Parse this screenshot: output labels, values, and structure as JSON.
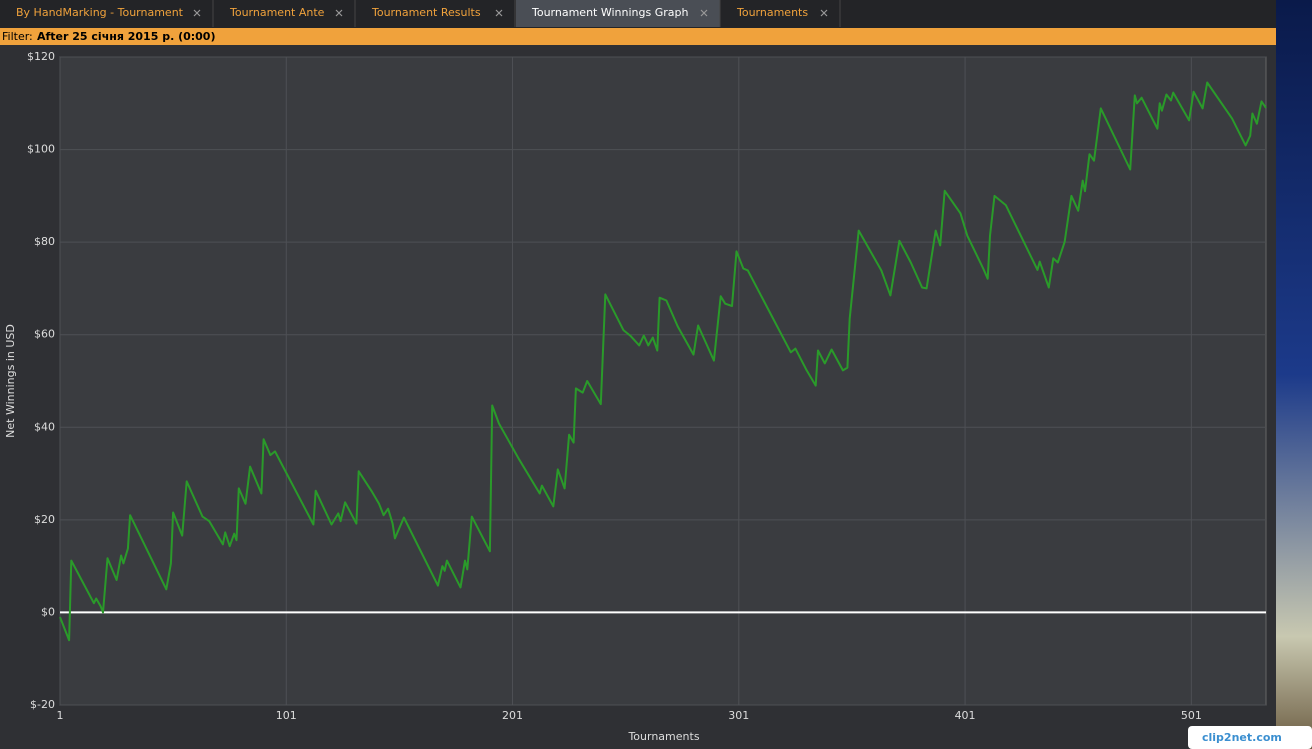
{
  "tabs": [
    {
      "label": "By HandMarking - Tournament",
      "active": false
    },
    {
      "label": "Tournament Ante",
      "active": false
    },
    {
      "label": "Tournament Results",
      "active": false
    },
    {
      "label": "Tournament Winnings Graph",
      "active": true
    },
    {
      "label": "Tournaments",
      "active": false
    }
  ],
  "filter": {
    "label": "Filter:",
    "value": "After 25 січня 2015 р. (0:00)"
  },
  "watermark": "clip2net.com",
  "chart_data": {
    "type": "line",
    "xlabel": "Tournaments",
    "ylabel": "Net Winnings in USD",
    "color": "#2a9a2a",
    "grid": true,
    "xlim": [
      1,
      534
    ],
    "xticks": [
      1,
      101,
      201,
      301,
      401,
      501
    ],
    "ylim": [
      -20,
      120
    ],
    "yticks": [
      {
        "value": -20,
        "label": "$-20"
      },
      {
        "value": 0,
        "label": "$0"
      },
      {
        "value": 20,
        "label": "$20"
      },
      {
        "value": 40,
        "label": "$40"
      },
      {
        "value": 60,
        "label": "$60"
      },
      {
        "value": 80,
        "label": "$80"
      },
      {
        "value": 100,
        "label": "$100"
      },
      {
        "value": 120,
        "label": "$120"
      }
    ],
    "x": [
      1,
      5,
      6,
      16,
      17,
      19,
      20,
      22,
      26,
      28,
      29,
      31,
      32,
      48,
      50,
      51,
      55,
      57,
      64,
      67,
      73,
      74,
      76,
      78,
      79,
      80,
      83,
      85,
      90,
      91,
      94,
      96,
      113,
      114,
      121,
      124,
      125,
      127,
      132,
      133,
      139,
      142,
      144,
      146,
      148,
      149,
      153,
      168,
      170,
      171,
      172,
      178,
      180,
      181,
      183,
      191,
      192,
      195,
      204,
      213,
      214,
      219,
      221,
      224,
      226,
      228,
      229,
      232,
      234,
      240,
      242,
      250,
      253,
      257,
      259,
      261,
      263,
      265,
      266,
      269,
      274,
      281,
      283,
      290,
      293,
      295,
      298,
      300,
      303,
      305,
      324,
      326,
      331,
      335,
      336,
      339,
      342,
      347,
      349,
      350,
      354,
      364,
      368,
      372,
      377,
      382,
      384,
      388,
      390,
      392,
      399,
      402,
      409,
      411,
      412,
      414,
      419,
      433,
      434,
      438,
      440,
      442,
      445,
      448,
      451,
      453,
      454,
      456,
      458,
      461,
      474,
      476,
      477,
      479,
      486,
      487,
      488,
      490,
      492,
      493,
      500,
      502,
      506,
      508,
      519,
      525,
      527,
      528,
      530,
      532,
      534
    ],
    "values": [
      -1,
      -6,
      11.2,
      2,
      3,
      1.3,
      0,
      11.7,
      7,
      12.3,
      10.6,
      13.8,
      21,
      5,
      10.6,
      21.6,
      16.6,
      28.3,
      20.7,
      19.7,
      14.7,
      17.3,
      14.3,
      17,
      15.6,
      26.8,
      23.5,
      31.5,
      25.7,
      37.4,
      34,
      34.8,
      19,
      26.3,
      19,
      21.4,
      19.7,
      23.8,
      19.2,
      30.5,
      26,
      23.5,
      21,
      22.4,
      19.2,
      16,
      20.5,
      5.8,
      10,
      9,
      11.2,
      5.4,
      11.2,
      9.3,
      20.7,
      13.2,
      44.7,
      40.8,
      33,
      25.7,
      27.4,
      22.9,
      30.9,
      26.8,
      38.4,
      36.7,
      48.4,
      47.5,
      50,
      45,
      68.7,
      61,
      59.8,
      57.7,
      59.8,
      57.7,
      59.4,
      56.6,
      68,
      67.4,
      61.8,
      55.7,
      62,
      54.4,
      68.3,
      66.7,
      66.2,
      78,
      74.3,
      73.9,
      56.2,
      57,
      52.3,
      49,
      56.6,
      53.8,
      56.8,
      52.3,
      52.9,
      63.5,
      82.5,
      73.9,
      68.5,
      80.3,
      75.6,
      70.2,
      70,
      82.5,
      79.3,
      91.1,
      86.2,
      81.4,
      74.3,
      72.1,
      81.4,
      90,
      88,
      74,
      75.8,
      70.2,
      76.5,
      75.6,
      80,
      90,
      86.8,
      93.3,
      91,
      99,
      97.6,
      108.9,
      95.7,
      111.7,
      110,
      111.2,
      104.5,
      110,
      108.4,
      111.9,
      110.6,
      112.3,
      106.3,
      112.5,
      108.9,
      114.5,
      106.7,
      100.9,
      103,
      107.8,
      105.6,
      110.4,
      109
    ]
  }
}
